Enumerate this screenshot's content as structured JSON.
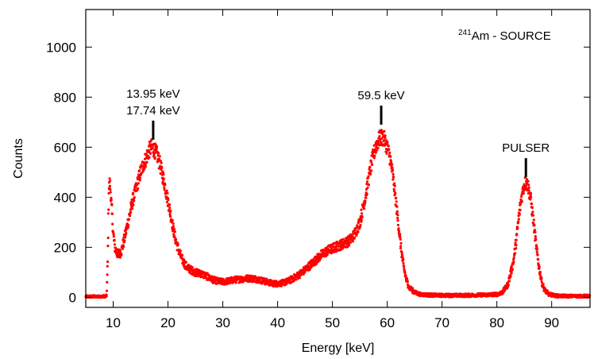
{
  "chart_data": {
    "type": "scatter",
    "title": "",
    "xlabel": "Energy [keV]",
    "ylabel": "Counts",
    "xlim": [
      5,
      97
    ],
    "ylim": [
      -40,
      1150
    ],
    "xticks": [
      10,
      20,
      30,
      40,
      50,
      60,
      70,
      80,
      90
    ],
    "yticks": [
      0,
      200,
      400,
      600,
      800,
      1000
    ],
    "grid": false,
    "marker_color": "#ff0000",
    "source_label": {
      "sup": "241",
      "text": "Am - SOURCE"
    },
    "annotations": [
      {
        "lines": [
          "13.95 keV",
          "17.74 keV"
        ],
        "x": 17.3,
        "y": 630
      },
      {
        "lines": [
          "59.5 keV"
        ],
        "x": 58.9,
        "y": 690
      },
      {
        "lines": [
          "PULSER"
        ],
        "x": 85.3,
        "y": 480
      }
    ],
    "series": [
      {
        "color": "#ff0000",
        "points": [
          [
            5.0,
            3
          ],
          [
            6.0,
            3
          ],
          [
            7.0,
            3
          ],
          [
            8.0,
            3
          ],
          [
            8.8,
            5
          ],
          [
            9.0,
            140
          ],
          [
            9.2,
            430
          ],
          [
            9.4,
            460
          ],
          [
            9.6,
            400
          ],
          [
            9.8,
            330
          ],
          [
            10.0,
            260
          ],
          [
            10.3,
            200
          ],
          [
            10.6,
            180
          ],
          [
            11.0,
            170
          ],
          [
            11.5,
            185
          ],
          [
            12.0,
            230
          ],
          [
            12.5,
            280
          ],
          [
            13.0,
            330
          ],
          [
            13.5,
            380
          ],
          [
            14.0,
            420
          ],
          [
            14.5,
            460
          ],
          [
            15.0,
            500
          ],
          [
            15.5,
            530
          ],
          [
            16.0,
            555
          ],
          [
            16.5,
            585
          ],
          [
            17.0,
            600
          ],
          [
            17.5,
            590
          ],
          [
            18.0,
            570
          ],
          [
            18.5,
            535
          ],
          [
            19.0,
            490
          ],
          [
            19.5,
            440
          ],
          [
            20.0,
            385
          ],
          [
            20.5,
            330
          ],
          [
            21.0,
            270
          ],
          [
            21.5,
            220
          ],
          [
            22.0,
            185
          ],
          [
            22.5,
            155
          ],
          [
            23.0,
            135
          ],
          [
            23.5,
            120
          ],
          [
            24.0,
            112
          ],
          [
            25.0,
            100
          ],
          [
            26.0,
            95
          ],
          [
            27.0,
            85
          ],
          [
            28.0,
            72
          ],
          [
            29.0,
            65
          ],
          [
            30.0,
            62
          ],
          [
            31.0,
            65
          ],
          [
            32.0,
            70
          ],
          [
            33.0,
            72
          ],
          [
            34.0,
            75
          ],
          [
            35.0,
            76
          ],
          [
            36.0,
            74
          ],
          [
            37.0,
            68
          ],
          [
            38.0,
            62
          ],
          [
            39.0,
            56
          ],
          [
            40.0,
            55
          ],
          [
            41.0,
            58
          ],
          [
            42.0,
            65
          ],
          [
            43.0,
            78
          ],
          [
            44.0,
            92
          ],
          [
            45.0,
            110
          ],
          [
            46.0,
            130
          ],
          [
            47.0,
            150
          ],
          [
            48.0,
            170
          ],
          [
            49.0,
            185
          ],
          [
            50.0,
            195
          ],
          [
            51.0,
            205
          ],
          [
            52.0,
            215
          ],
          [
            53.0,
            225
          ],
          [
            54.0,
            250
          ],
          [
            55.0,
            300
          ],
          [
            56.0,
            400
          ],
          [
            56.5,
            460
          ],
          [
            57.0,
            520
          ],
          [
            57.5,
            570
          ],
          [
            58.0,
            610
          ],
          [
            58.5,
            630
          ],
          [
            59.0,
            640
          ],
          [
            59.5,
            630
          ],
          [
            60.0,
            600
          ],
          [
            60.5,
            560
          ],
          [
            61.0,
            490
          ],
          [
            61.5,
            400
          ],
          [
            62.0,
            300
          ],
          [
            62.5,
            200
          ],
          [
            63.0,
            120
          ],
          [
            63.5,
            70
          ],
          [
            64.0,
            40
          ],
          [
            65.0,
            20
          ],
          [
            66.0,
            12
          ],
          [
            68.0,
            9
          ],
          [
            70.0,
            8
          ],
          [
            72.0,
            8
          ],
          [
            74.0,
            8
          ],
          [
            76.0,
            9
          ],
          [
            78.0,
            10
          ],
          [
            80.0,
            12
          ],
          [
            81.0,
            20
          ],
          [
            82.0,
            50
          ],
          [
            83.0,
            140
          ],
          [
            83.5,
            220
          ],
          [
            84.0,
            320
          ],
          [
            84.5,
            400
          ],
          [
            85.0,
            450
          ],
          [
            85.3,
            460
          ],
          [
            85.7,
            445
          ],
          [
            86.2,
            390
          ],
          [
            86.7,
            300
          ],
          [
            87.2,
            200
          ],
          [
            87.7,
            120
          ],
          [
            88.2,
            60
          ],
          [
            88.7,
            30
          ],
          [
            89.5,
            12
          ],
          [
            91.0,
            6
          ],
          [
            93.0,
            5
          ],
          [
            95.0,
            5
          ],
          [
            97.0,
            5
          ]
        ]
      }
    ]
  }
}
